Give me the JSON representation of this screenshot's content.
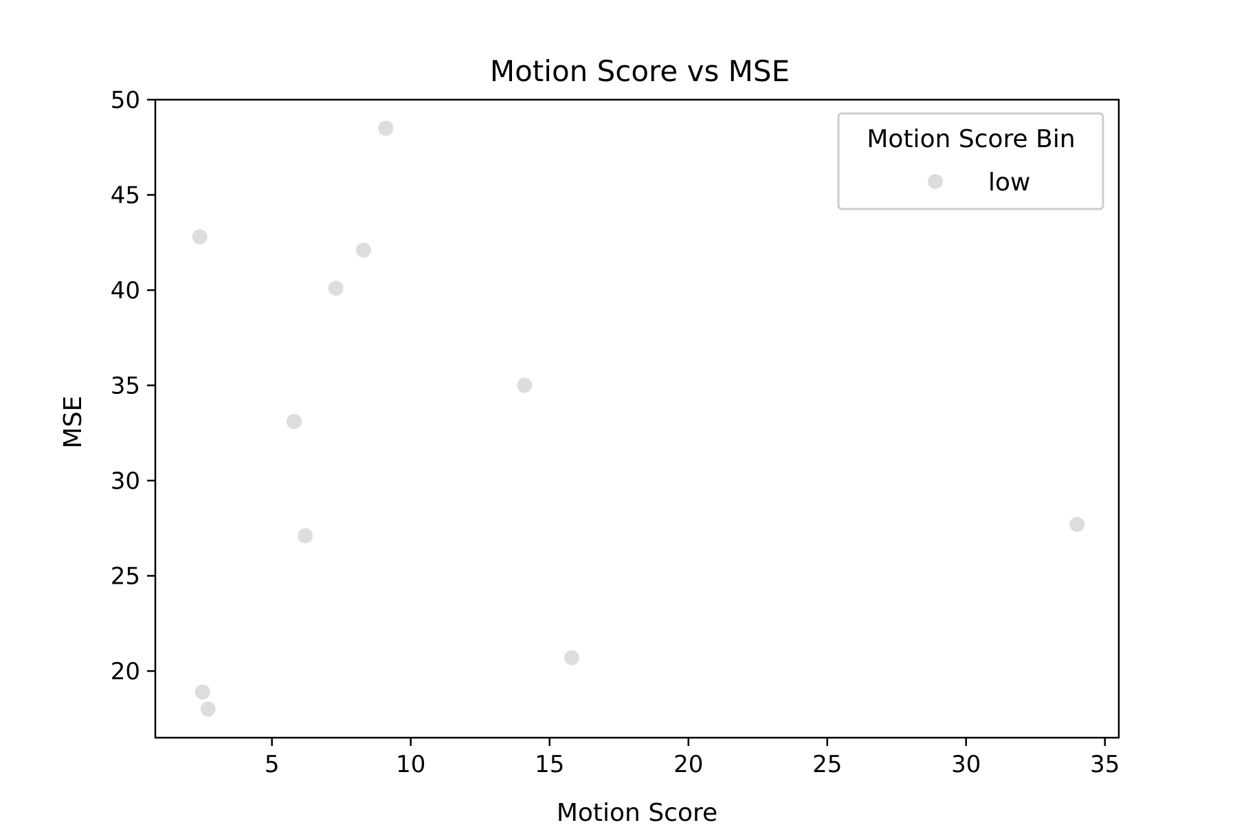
{
  "chart_data": {
    "type": "scatter",
    "title": "Motion Score vs MSE",
    "xlabel": "Motion Score",
    "ylabel": "MSE",
    "xlim": [
      0.8,
      35.5
    ],
    "ylim": [
      16.5,
      50
    ],
    "xticks": [
      5,
      10,
      15,
      20,
      25,
      30,
      35
    ],
    "yticks": [
      20,
      25,
      30,
      35,
      40,
      45,
      50
    ],
    "grid": false,
    "legend": {
      "title": "Motion Score Bin",
      "placement": "top-right",
      "entries": [
        {
          "label": "low",
          "color": "#dddddd"
        }
      ]
    },
    "series": [
      {
        "name": "low",
        "color": "#dddddd",
        "points": [
          {
            "x": 9.1,
            "y": 48.5
          },
          {
            "x": 2.4,
            "y": 42.8
          },
          {
            "x": 8.3,
            "y": 42.1
          },
          {
            "x": 7.3,
            "y": 40.1
          },
          {
            "x": 14.1,
            "y": 35.0
          },
          {
            "x": 5.8,
            "y": 33.1
          },
          {
            "x": 6.2,
            "y": 27.1
          },
          {
            "x": 34.0,
            "y": 27.7
          },
          {
            "x": 15.8,
            "y": 20.7
          },
          {
            "x": 2.5,
            "y": 18.9
          },
          {
            "x": 2.7,
            "y": 18.0
          }
        ]
      }
    ]
  }
}
